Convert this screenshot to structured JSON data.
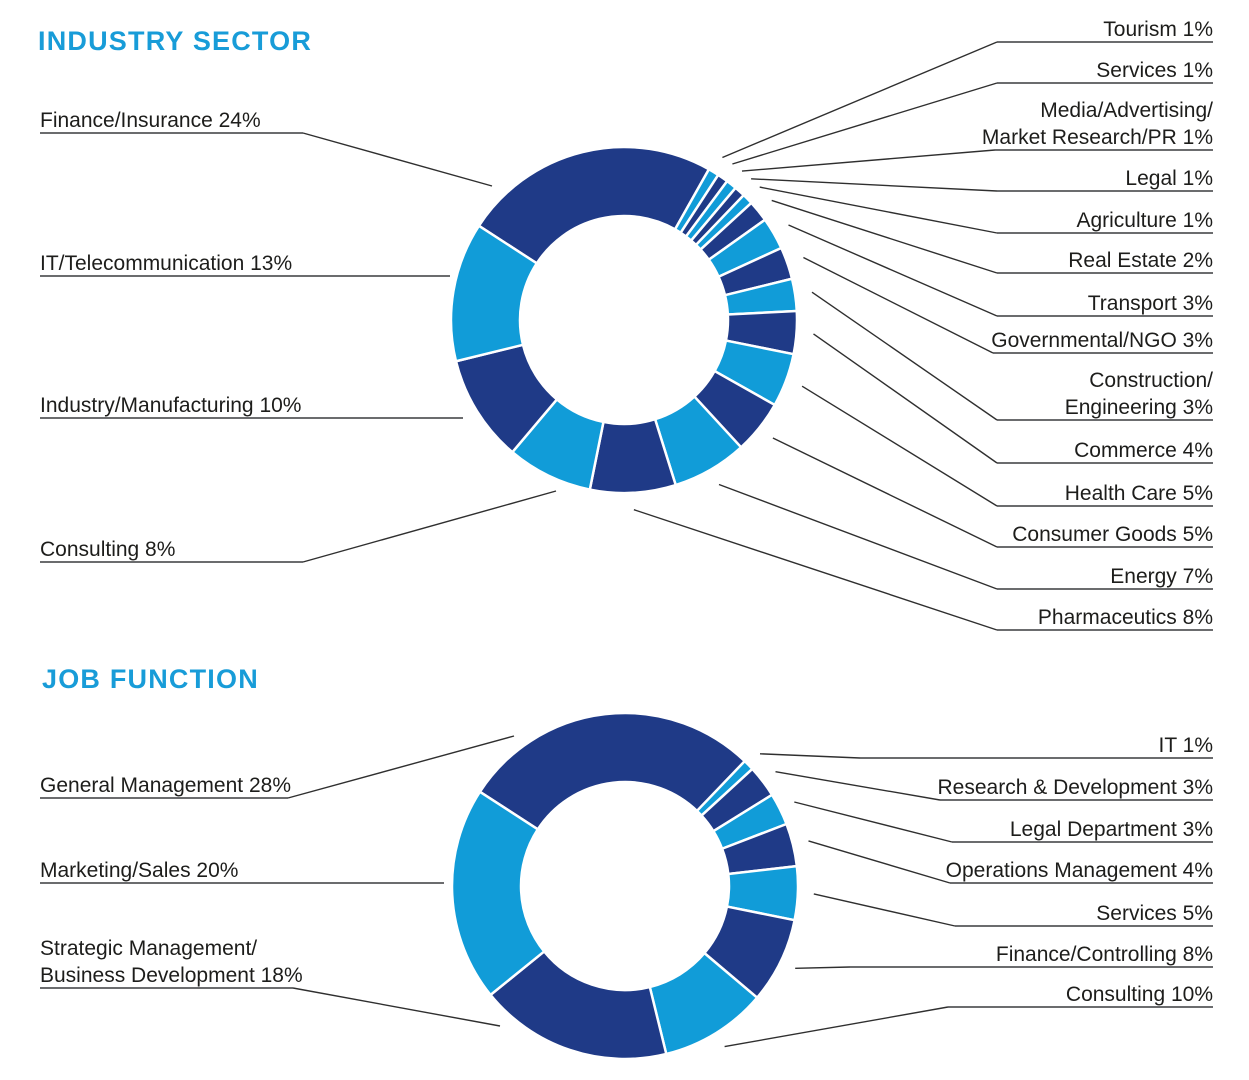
{
  "page": {
    "background": "#ffffff"
  },
  "colors": {
    "dark_navy": "#1f3a87",
    "light_blue": "#119cd8",
    "heading_blue": "#189cd8",
    "label_text": "#1d1d1b",
    "underline": "#565759",
    "leader_line": "#2f2f2f",
    "slice_gap": "#ffffff"
  },
  "chart_data": [
    {
      "type": "pie",
      "variant": "donut",
      "title": "INDUSTRY SECTOR",
      "legend_position": "callout-labels",
      "total": 100,
      "slices": [
        {
          "label": "Finance/Insurance",
          "value": 24,
          "color": "dark"
        },
        {
          "label": "Tourism",
          "value": 1,
          "color": "light"
        },
        {
          "label": "Services",
          "value": 1,
          "color": "dark"
        },
        {
          "label": "Media/Advertising/Market Research/PR",
          "value": 1,
          "color": "light",
          "display_lines": [
            "Media/Advertising/",
            "Market Research/PR 1%"
          ]
        },
        {
          "label": "Legal",
          "value": 1,
          "color": "dark"
        },
        {
          "label": "Agriculture",
          "value": 1,
          "color": "light"
        },
        {
          "label": "Real Estate",
          "value": 2,
          "color": "dark"
        },
        {
          "label": "Transport",
          "value": 3,
          "color": "light"
        },
        {
          "label": "Governmental/NGO",
          "value": 3,
          "color": "dark"
        },
        {
          "label": "Construction/Engineering",
          "value": 3,
          "color": "light",
          "display_lines": [
            "Construction/",
            "Engineering 3%"
          ]
        },
        {
          "label": "Commerce",
          "value": 4,
          "color": "dark"
        },
        {
          "label": "Health Care",
          "value": 5,
          "color": "light"
        },
        {
          "label": "Consumer Goods",
          "value": 5,
          "color": "dark"
        },
        {
          "label": "Energy",
          "value": 7,
          "color": "light"
        },
        {
          "label": "Pharmaceutics",
          "value": 8,
          "color": "dark"
        },
        {
          "label": "Consulting",
          "value": 8,
          "color": "light"
        },
        {
          "label": "Industry/Manufacturing",
          "value": 10,
          "color": "dark"
        },
        {
          "label": "IT/Telecommunication",
          "value": 13,
          "color": "light"
        }
      ]
    },
    {
      "type": "pie",
      "variant": "donut",
      "title": "JOB FUNCTION",
      "legend_position": "callout-labels",
      "total": 100,
      "slices": [
        {
          "label": "General Management",
          "value": 28,
          "color": "dark"
        },
        {
          "label": "IT",
          "value": 1,
          "color": "light"
        },
        {
          "label": "Research & Development",
          "value": 3,
          "color": "dark"
        },
        {
          "label": "Legal Department",
          "value": 3,
          "color": "light"
        },
        {
          "label": "Operations Management",
          "value": 4,
          "color": "dark"
        },
        {
          "label": "Services",
          "value": 5,
          "color": "light"
        },
        {
          "label": "Finance/Controlling",
          "value": 8,
          "color": "dark"
        },
        {
          "label": "Consulting",
          "value": 10,
          "color": "light"
        },
        {
          "label": "Strategic Management/Business Development",
          "value": 18,
          "color": "dark",
          "display_lines": [
            "Strategic Management/",
            "Business Development 18%"
          ]
        },
        {
          "label": "Marketing/Sales",
          "value": 20,
          "color": "light"
        }
      ]
    }
  ]
}
